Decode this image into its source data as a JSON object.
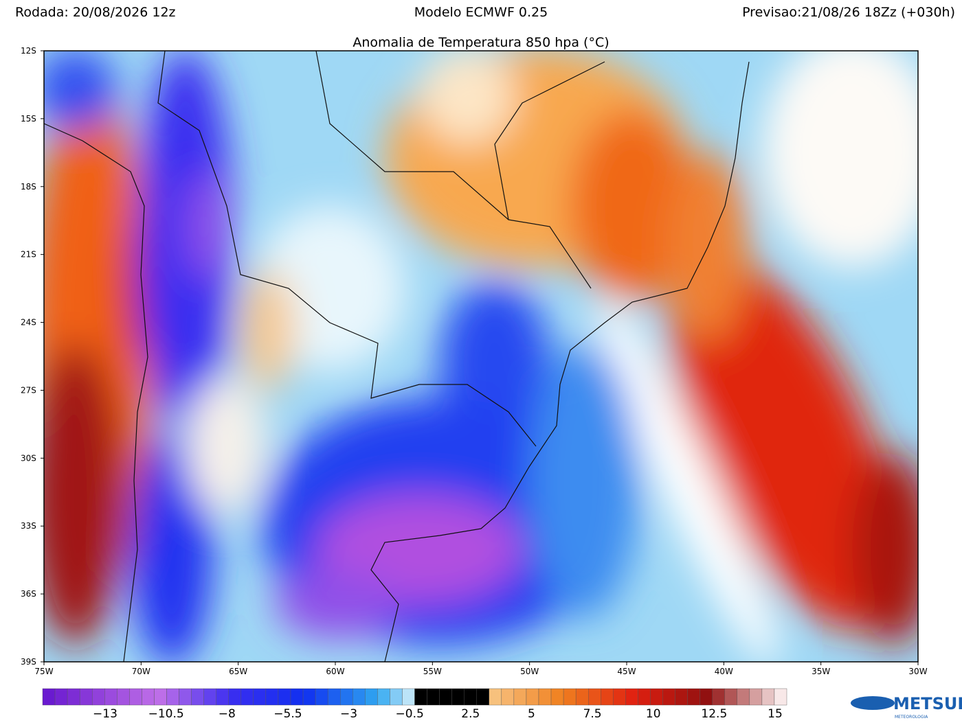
{
  "header": {
    "left": "Rodada: 20/08/2026 12z",
    "center": "Modelo ECMWF 0.25",
    "right": "Previsao:21/08/26 18Zz (+030h)",
    "title": "Anomalia de Temperatura 850 hpa (°C)"
  },
  "map": {
    "lat_ticks": [
      "12S",
      "15S",
      "18S",
      "21S",
      "24S",
      "27S",
      "30S",
      "33S",
      "36S",
      "39S"
    ],
    "lon_ticks": [
      "75W",
      "70W",
      "65W",
      "60W",
      "55W",
      "50W",
      "45W",
      "40W",
      "35W",
      "30W"
    ]
  },
  "colorbar": {
    "labels": [
      "−13",
      "−10.5",
      "−8",
      "−5.5",
      "−3",
      "−0.5",
      "2.5",
      "5",
      "7.5",
      "10",
      "12.5",
      "15"
    ]
  },
  "logo": {
    "name": "METSUL",
    "sub": "METEOROLOGIA"
  }
}
